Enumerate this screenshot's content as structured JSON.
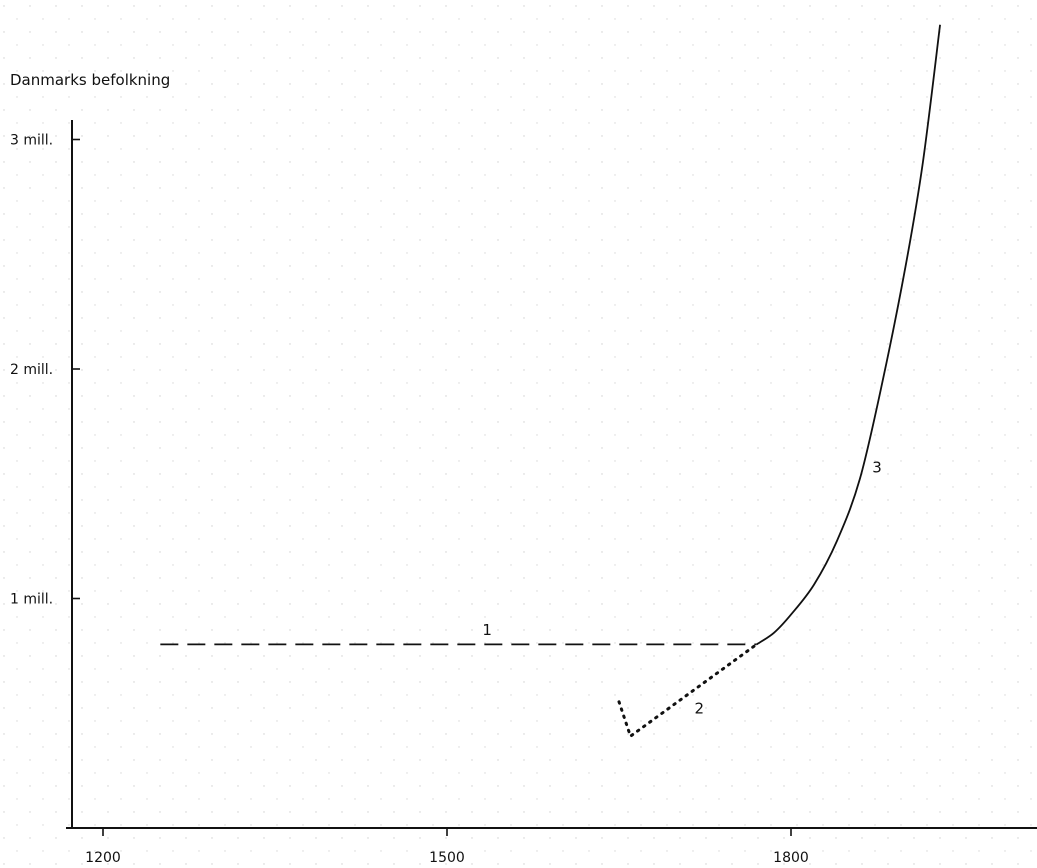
{
  "chart_data": {
    "type": "line",
    "title": "",
    "xlabel": "",
    "ylabel": "Danmarks befolkning",
    "xlim": [
      1170,
      1990
    ],
    "ylim": [
      0,
      3.3
    ],
    "grid": false,
    "legend": "none",
    "x_ticks": [
      {
        "value": 1200,
        "label": "1200"
      },
      {
        "value": 1500,
        "label": "1500"
      },
      {
        "value": 1800,
        "label": "1800"
      }
    ],
    "y_ticks": [
      {
        "value": 1,
        "label": "1 mill."
      },
      {
        "value": 2,
        "label": "2 mill."
      },
      {
        "value": 3,
        "label": "3 mill."
      }
    ],
    "series": [
      {
        "name": "1",
        "style": "dashed",
        "points": [
          [
            1250,
            0.8
          ],
          [
            1770,
            0.8
          ]
        ],
        "label_at": [
          1535,
          0.84
        ]
      },
      {
        "name": "2",
        "style": "dotted",
        "points": [
          [
            1650,
            0.55
          ],
          [
            1660,
            0.4
          ],
          [
            1770,
            0.8
          ]
        ],
        "label_at": [
          1720,
          0.5
        ]
      },
      {
        "name": "3",
        "style": "solid",
        "points": [
          [
            1770,
            0.8
          ],
          [
            1785,
            0.85
          ],
          [
            1800,
            0.93
          ],
          [
            1820,
            1.06
          ],
          [
            1840,
            1.25
          ],
          [
            1860,
            1.52
          ],
          [
            1880,
            1.95
          ],
          [
            1900,
            2.45
          ],
          [
            1915,
            2.9
          ],
          [
            1930,
            3.5
          ]
        ],
        "label_at": [
          1875,
          1.55
        ]
      }
    ],
    "colors": {
      "axis": "#111111",
      "line": "#111111",
      "dot_pattern": "#c8c8c8"
    }
  }
}
